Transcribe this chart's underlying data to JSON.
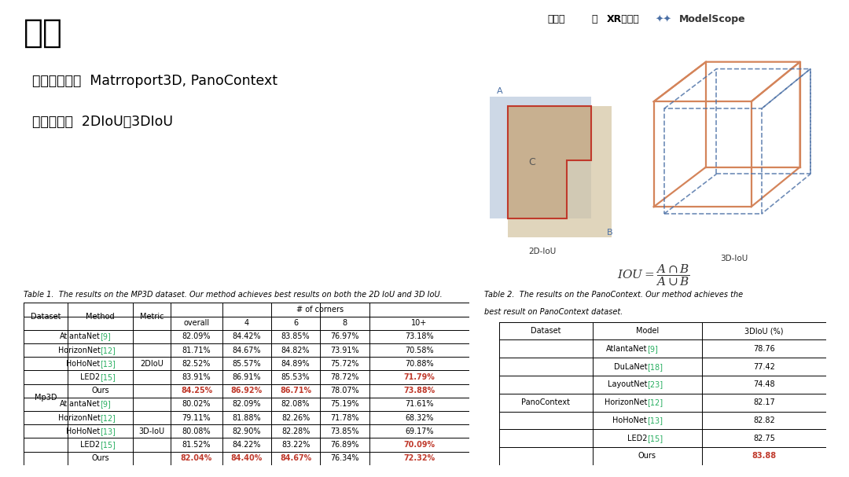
{
  "title": "结果",
  "bg_color": "#ffffff",
  "text_line1": "公共数据集：  Matrroport3D, PanoContext",
  "text_line2": "评价指标：  2DIoU，3DIoU",
  "table1_caption": "Table 1.  The results on the MP3D dataset. Our method achieves best results on both the 2D IoU and 3D IoU.",
  "table2_caption_l1": "Table 2.  The results on the PanoContext. Our method achieves the",
  "table2_caption_l2": "best result on PanoContext dataset.",
  "table1_headers": [
    "Dataset",
    "Method",
    "Metric",
    "overall",
    "4",
    "6",
    "8",
    "10+"
  ],
  "table1_subheader": "# of corners",
  "table1_rows": [
    [
      "Mp3D",
      "AtlantaNet [9]",
      "2DIoU",
      "82.09%",
      "84.42%",
      "83.85%",
      "76.97%",
      "73.18%"
    ],
    [
      "",
      "HorizonNet [12]",
      "",
      "81.71%",
      "84.67%",
      "84.82%",
      "73.91%",
      "70.58%"
    ],
    [
      "",
      "HoHoNet [13]",
      "",
      "82.52%",
      "85.57%",
      "84.89%",
      "75.72%",
      "70.88%"
    ],
    [
      "",
      "LED2 [15]",
      "",
      "83.91%",
      "86.91%",
      "85.53%",
      "78.72%",
      "71.79%"
    ],
    [
      "",
      "Ours",
      "",
      "84.25%",
      "86.92%",
      "86.71%",
      "78.07%",
      "73.88%"
    ],
    [
      "",
      "AtlantaNet [9]",
      "3D-IoU",
      "80.02%",
      "82.09%",
      "82.08%",
      "75.19%",
      "71.61%"
    ],
    [
      "",
      "HorizonNet [12]",
      "",
      "79.11%",
      "81.88%",
      "82.26%",
      "71.78%",
      "68.32%"
    ],
    [
      "",
      "HoHoNet [13]",
      "",
      "80.08%",
      "82.90%",
      "82.28%",
      "73.85%",
      "69.17%"
    ],
    [
      "",
      "LED2 [15]",
      "",
      "81.52%",
      "84.22%",
      "83.22%",
      "76.89%",
      "70.09%"
    ],
    [
      "",
      "Ours",
      "",
      "82.04%",
      "84.40%",
      "84.67%",
      "76.34%",
      "72.32%"
    ]
  ],
  "table1_red_cells": [
    [
      4,
      3
    ],
    [
      4,
      4
    ],
    [
      4,
      5
    ],
    [
      4,
      7
    ],
    [
      3,
      7
    ],
    [
      9,
      3
    ],
    [
      9,
      4
    ],
    [
      9,
      5
    ],
    [
      9,
      7
    ],
    [
      8,
      7
    ]
  ],
  "table2_headers": [
    "Dataset",
    "Model",
    "3DIoU (%)"
  ],
  "table2_rows": [
    [
      "PanoContext",
      "AtlantaNet [9]",
      "78.76"
    ],
    [
      "",
      "DuLaNet [18]",
      "77.42"
    ],
    [
      "",
      "LayoutNet [23]",
      "74.48"
    ],
    [
      "",
      "HorizonNet [12]",
      "82.17"
    ],
    [
      "",
      "HoHoNet [13]",
      "82.82"
    ],
    [
      "",
      "LED2 [15]",
      "82.75"
    ],
    [
      "",
      "Ours",
      "83.88"
    ]
  ],
  "table2_red_cells": [
    [
      6,
      2
    ]
  ],
  "image_bg": "#f0ece0",
  "color_red": "#c0392b",
  "color_green": "#27ae60",
  "color_blue_light": "#aabbd4",
  "color_tan": "#c8b99a",
  "color_orange": "#d4845a",
  "color_blue_dark": "#4a6fa5"
}
